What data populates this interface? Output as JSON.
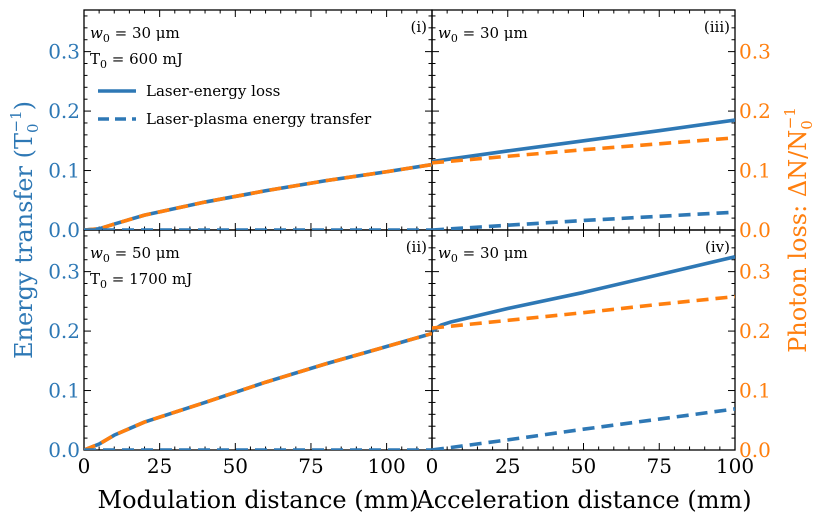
{
  "chart_data": {
    "type": "line",
    "layout": "2x2 grid of panels with shared axes",
    "colors": {
      "blue": "#2e78b5",
      "orange": "#ff7f0e",
      "axis": "#000000"
    },
    "xlabels": {
      "left": "Modulation distance (mm)",
      "right": "Acceleration distance (mm)"
    },
    "ylabels": {
      "left": {
        "main": "Energy transfer (T",
        "sub": "0",
        "sup": "−1",
        "close": ")"
      },
      "right": {
        "main": "Photon loss: ΔN/N",
        "sub": "0",
        "sup": "−1"
      }
    },
    "xticks": {
      "left": [
        "0",
        "25",
        "50",
        "75",
        "100"
      ],
      "right": [
        "0",
        "25",
        "50",
        "75",
        "100"
      ]
    },
    "yticks": [
      "0.0",
      "0.1",
      "0.2",
      "0.3"
    ],
    "xlim": {
      "left": [
        0,
        115
      ],
      "right": [
        0,
        100
      ]
    },
    "ylim": [
      0,
      0.37
    ],
    "legend": {
      "solid": "Laser-energy loss",
      "dashed": "Laser-plasma energy transfer"
    },
    "panels": [
      {
        "id": "i",
        "label": "(i)",
        "annotation_w": "w",
        "annotation_w_sub": "0",
        "annotation_w_value": " = 30 μm",
        "annotation_T": "T",
        "annotation_T_sub": "0",
        "annotation_T_value": " = 600 mJ",
        "series": [
          {
            "name": "Laser-energy loss",
            "color": "blue",
            "dash": "solid",
            "x": [
              0,
              5,
              10,
              20,
              40,
              60,
              80,
              100,
              115
            ],
            "y": [
              0,
              0.002,
              0.01,
              0.025,
              0.047,
              0.066,
              0.083,
              0.098,
              0.11
            ]
          },
          {
            "name": "Photon loss",
            "color": "orange",
            "dash": "dashed",
            "x": [
              0,
              5,
              10,
              20,
              40,
              60,
              80,
              100,
              115
            ],
            "y": [
              0,
              0.002,
              0.01,
              0.025,
              0.047,
              0.066,
              0.083,
              0.098,
              0.11
            ]
          },
          {
            "name": "Laser-plasma energy transfer",
            "color": "blue",
            "dash": "dashed",
            "x": [
              0,
              115
            ],
            "y": [
              0,
              0
            ]
          }
        ]
      },
      {
        "id": "iii",
        "label": "(iii)",
        "annotation_w": "w",
        "annotation_w_sub": "0",
        "annotation_w_value": " = 30 μm",
        "series": [
          {
            "name": "Laser-energy loss",
            "color": "blue",
            "dash": "solid",
            "x": [
              0,
              25,
              50,
              75,
              100
            ],
            "y": [
              0.115,
              0.133,
              0.15,
              0.167,
              0.185
            ]
          },
          {
            "name": "Photon loss",
            "color": "orange",
            "dash": "dashed",
            "x": [
              0,
              25,
              50,
              75,
              100
            ],
            "y": [
              0.113,
              0.124,
              0.135,
              0.145,
              0.155
            ]
          },
          {
            "name": "Laser-plasma energy transfer",
            "color": "blue",
            "dash": "dashed",
            "x": [
              0,
              25,
              50,
              75,
              100
            ],
            "y": [
              0.0,
              0.008,
              0.016,
              0.023,
              0.03
            ]
          }
        ]
      },
      {
        "id": "ii",
        "label": "(ii)",
        "annotation_w": "w",
        "annotation_w_sub": "0",
        "annotation_w_value": " = 50 μm",
        "annotation_T": "T",
        "annotation_T_sub": "0",
        "annotation_T_value": " = 1700 mJ",
        "series": [
          {
            "name": "Laser-energy loss",
            "color": "blue",
            "dash": "solid",
            "x": [
              0,
              5,
              10,
              20,
              40,
              60,
              80,
              100,
              115
            ],
            "y": [
              0,
              0.01,
              0.025,
              0.047,
              0.08,
              0.114,
              0.145,
              0.174,
              0.196
            ]
          },
          {
            "name": "Photon loss",
            "color": "orange",
            "dash": "dashed",
            "x": [
              0,
              5,
              10,
              20,
              40,
              60,
              80,
              100,
              115
            ],
            "y": [
              0,
              0.01,
              0.025,
              0.047,
              0.08,
              0.114,
              0.145,
              0.174,
              0.196
            ]
          },
          {
            "name": "Laser-plasma energy transfer",
            "color": "blue",
            "dash": "dashed",
            "x": [
              0,
              115
            ],
            "y": [
              0,
              0
            ]
          }
        ]
      },
      {
        "id": "iv",
        "label": "(iv)",
        "annotation_w": "w",
        "annotation_w_sub": "0",
        "annotation_w_value": " = 30 μm",
        "series": [
          {
            "name": "Laser-energy loss",
            "color": "blue",
            "dash": "solid",
            "x": [
              0,
              3,
              6,
              25,
              50,
              75,
              100
            ],
            "y": [
              0.2,
              0.21,
              0.215,
              0.238,
              0.265,
              0.295,
              0.325
            ]
          },
          {
            "name": "Photon loss",
            "color": "orange",
            "dash": "dashed",
            "x": [
              0,
              25,
              50,
              75,
              100
            ],
            "y": [
              0.205,
              0.218,
              0.231,
              0.245,
              0.258
            ]
          },
          {
            "name": "Laser-plasma energy transfer",
            "color": "blue",
            "dash": "dashed",
            "x": [
              0,
              25,
              50,
              75,
              100
            ],
            "y": [
              0.0,
              0.017,
              0.035,
              0.052,
              0.069
            ]
          }
        ]
      }
    ]
  }
}
